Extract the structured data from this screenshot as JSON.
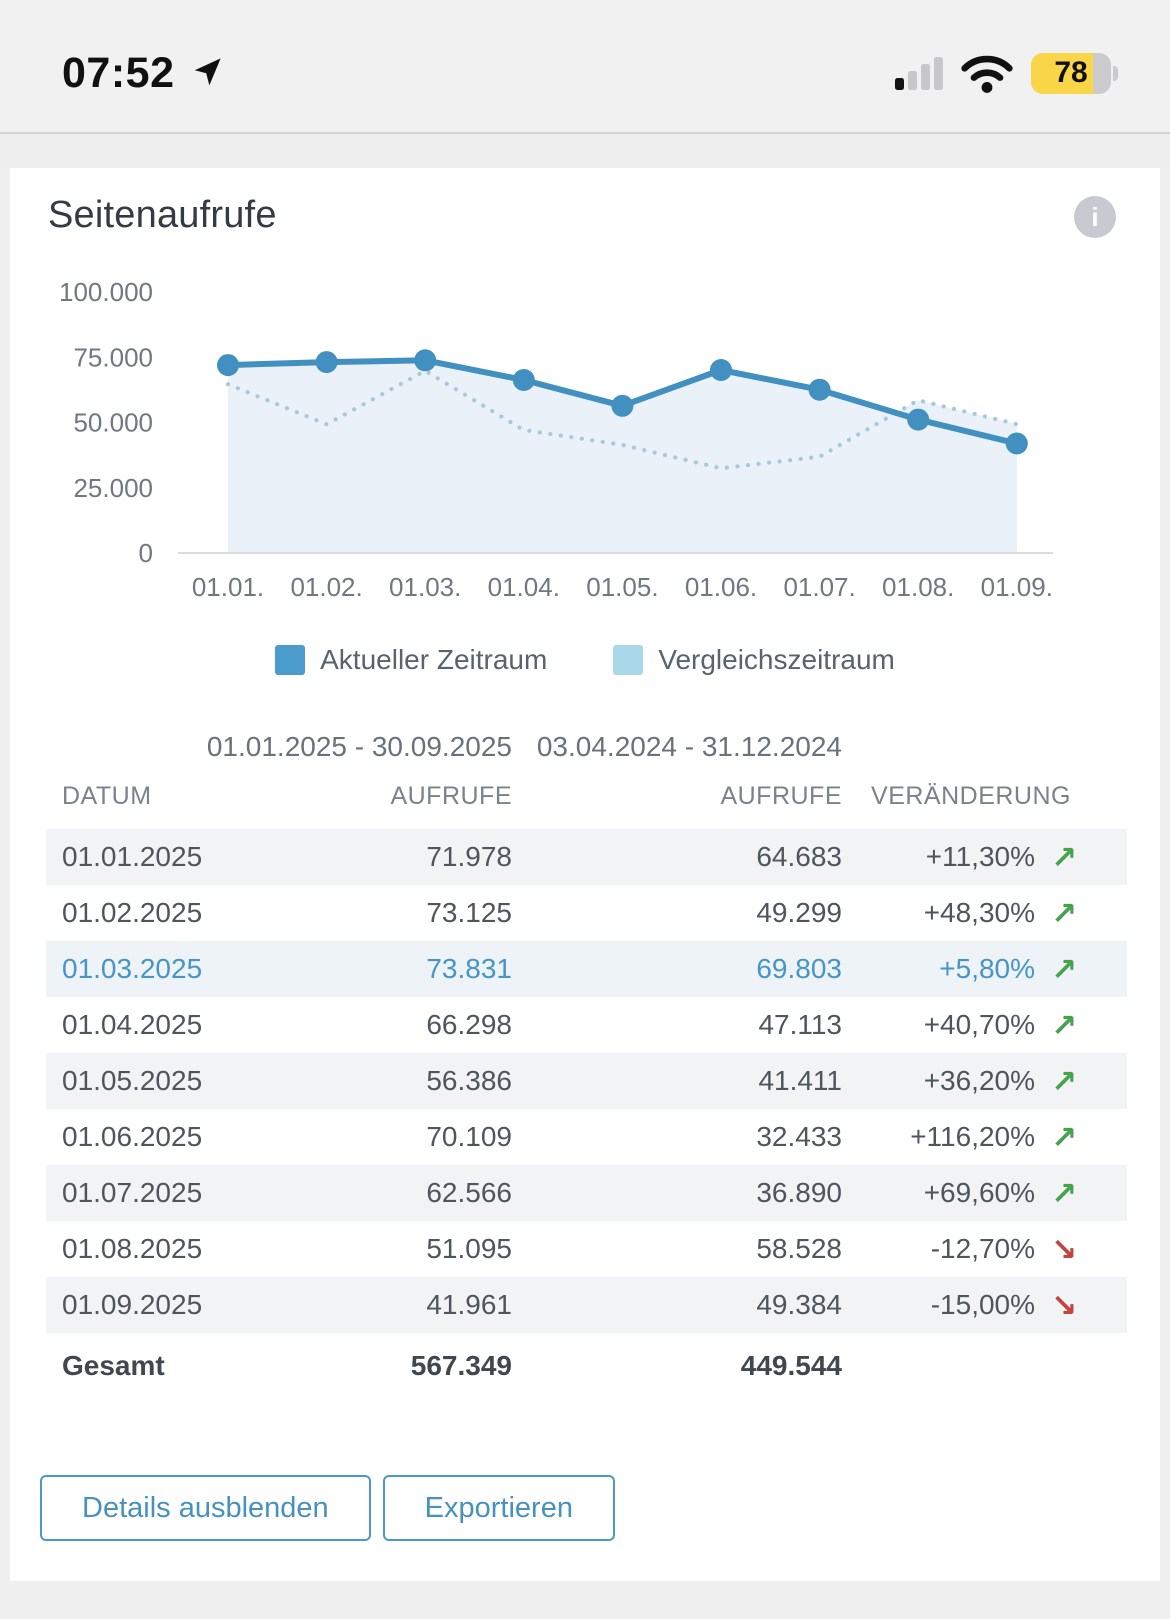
{
  "status_bar": {
    "time": "07:52",
    "battery_percent": "78"
  },
  "card": {
    "title": "Seitenaufrufe",
    "info_label": "i",
    "chart_data": {
      "type": "line",
      "x_labels": [
        "01.01.",
        "01.02.",
        "01.03.",
        "01.04.",
        "01.05.",
        "01.06.",
        "01.07.",
        "01.08.",
        "01.09."
      ],
      "y_ticks": [
        {
          "label": "100.000",
          "value": 100000
        },
        {
          "label": "75.000",
          "value": 75000
        },
        {
          "label": "50.000",
          "value": 50000
        },
        {
          "label": "25.000",
          "value": 25000
        },
        {
          "label": "0",
          "value": 0
        }
      ],
      "ylim": [
        0,
        100000
      ],
      "series": [
        {
          "name": "Aktueller Zeitraum",
          "style": "solid",
          "color": "#4190c0",
          "values": [
            71978,
            73125,
            73831,
            66298,
            56386,
            70109,
            62566,
            51095,
            41961
          ]
        },
        {
          "name": "Vergleichszeitraum",
          "style": "dotted",
          "color": "#a7c9db",
          "values": [
            64683,
            49299,
            69803,
            47113,
            41411,
            32433,
            36890,
            58528,
            49384
          ]
        }
      ],
      "area_fill": "#eaf1f8",
      "axis_color": "#dadcde",
      "tick_color": "#70777f"
    },
    "legend": [
      {
        "label": "Aktueller Zeitraum",
        "color": "#4b9ccd"
      },
      {
        "label": "Vergleichszeitraum",
        "color": "#abd7eb"
      }
    ],
    "table": {
      "range_current": "01.01.2025 - 30.09.2025",
      "range_comparison": "03.04.2024 - 31.12.2024",
      "headers": {
        "date": "DATUM",
        "current": "AUFRUFE",
        "comparison": "AUFRUFE",
        "change": "VERÄNDERUNG"
      },
      "rows": [
        {
          "date": "01.01.2025",
          "current": "71.978",
          "comparison": "64.683",
          "change": "+11,30%",
          "direction": "up",
          "highlighted": false
        },
        {
          "date": "01.02.2025",
          "current": "73.125",
          "comparison": "49.299",
          "change": "+48,30%",
          "direction": "up",
          "highlighted": false
        },
        {
          "date": "01.03.2025",
          "current": "73.831",
          "comparison": "69.803",
          "change": "+5,80%",
          "direction": "up",
          "highlighted": true
        },
        {
          "date": "01.04.2025",
          "current": "66.298",
          "comparison": "47.113",
          "change": "+40,70%",
          "direction": "up",
          "highlighted": false
        },
        {
          "date": "01.05.2025",
          "current": "56.386",
          "comparison": "41.411",
          "change": "+36,20%",
          "direction": "up",
          "highlighted": false
        },
        {
          "date": "01.06.2025",
          "current": "70.109",
          "comparison": "32.433",
          "change": "+116,20%",
          "direction": "up",
          "highlighted": false
        },
        {
          "date": "01.07.2025",
          "current": "62.566",
          "comparison": "36.890",
          "change": "+69,60%",
          "direction": "up",
          "highlighted": false
        },
        {
          "date": "01.08.2025",
          "current": "51.095",
          "comparison": "58.528",
          "change": "-12,70%",
          "direction": "down",
          "highlighted": false
        },
        {
          "date": "01.09.2025",
          "current": "41.961",
          "comparison": "49.384",
          "change": "-15,00%",
          "direction": "down",
          "highlighted": false
        }
      ],
      "total": {
        "label": "Gesamt",
        "current": "567.349",
        "comparison": "449.544"
      }
    },
    "buttons": [
      {
        "label": "Details ausblenden"
      },
      {
        "label": "Exportieren"
      }
    ]
  }
}
